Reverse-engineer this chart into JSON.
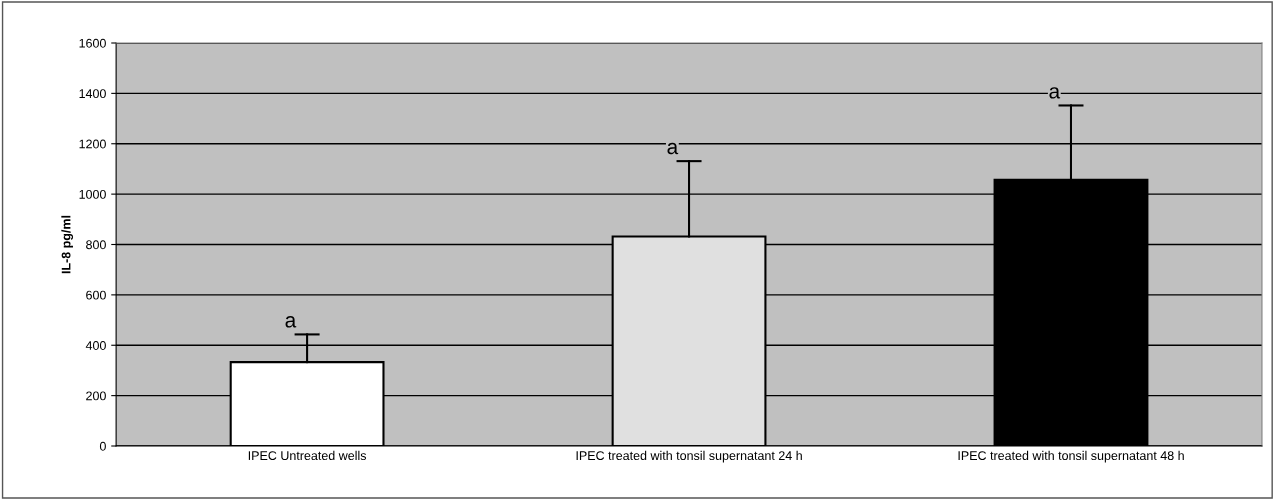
{
  "chart_data": {
    "type": "bar",
    "ylabel": "IL-8 pg/ml",
    "categories": [
      "IPEC Untreated wells",
      "IPEC treated with tonsil supernatant 24 h",
      "IPEC treated with tonsil supernatant 48 h"
    ],
    "values": [
      333,
      832,
      1057
    ],
    "errors": [
      [
        333,
        443
      ],
      [
        832,
        1131
      ],
      [
        1057,
        1352
      ]
    ],
    "colors": [
      "#ffffff",
      "#e0e0e0",
      "#000000"
    ],
    "annotations": [
      {
        "text": "a",
        "x": "IPEC Untreated wells",
        "y": 443
      },
      {
        "text": "a",
        "x": "IPEC treated with tonsil supernatant 24 h",
        "y": 1131
      },
      {
        "text": "a",
        "x": "IPEC treated with tonsil supernatant 48 h",
        "y": 1352
      }
    ],
    "ylim": [
      0,
      1600
    ],
    "yticks": [
      0,
      200,
      400,
      600,
      800,
      1000,
      1200,
      1400,
      1600
    ],
    "grid": "y"
  }
}
